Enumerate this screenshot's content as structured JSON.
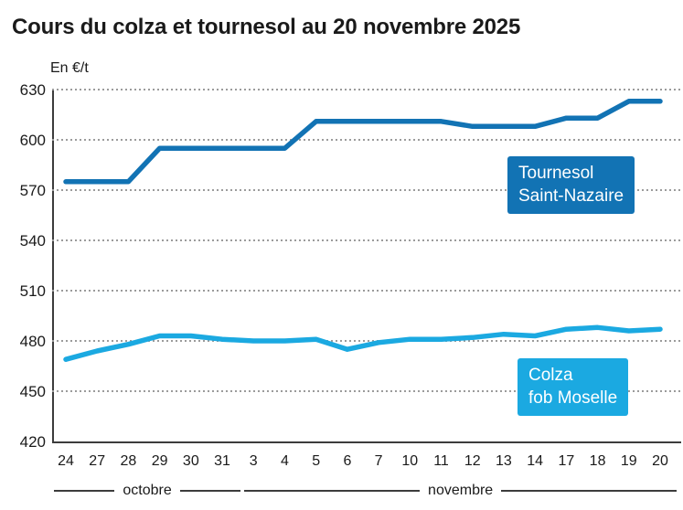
{
  "title": "Cours du colza et tournesol au 20 novembre 2025",
  "unit_label": "En €/t",
  "colors": {
    "tournesol": "#1273b4",
    "colza": "#1ba9e1",
    "grid": "#9b9b9b",
    "axis": "#3c3c3c",
    "text": "#1a1a1a"
  },
  "chart_data": {
    "type": "line",
    "title": "Cours du colza et tournesol au 20 novembre 2025",
    "ylabel": "En €/t",
    "ylim": [
      420,
      630
    ],
    "yticks": [
      630,
      600,
      570,
      540,
      510,
      480,
      450,
      420
    ],
    "grid": "horizontal dotted",
    "legend_position": "inline boxed labels on chart",
    "x": [
      "24",
      "27",
      "28",
      "29",
      "30",
      "31",
      "3",
      "4",
      "5",
      "6",
      "7",
      "10",
      "11",
      "12",
      "13",
      "14",
      "17",
      "18",
      "19",
      "20"
    ],
    "month_groups": [
      {
        "label": "octobre",
        "start_index": 0,
        "end_index": 5
      },
      {
        "label": "novembre",
        "start_index": 6,
        "end_index": 19
      }
    ],
    "series": [
      {
        "name": "Tournesol Saint-Nazaire",
        "label_lines": [
          "Tournesol",
          "Saint-Nazaire"
        ],
        "color": "#1273b4",
        "values": [
          575,
          575,
          575,
          595,
          595,
          595,
          595,
          595,
          611,
          611,
          611,
          611,
          611,
          608,
          608,
          608,
          613,
          613,
          623,
          623
        ]
      },
      {
        "name": "Colza fob Moselle",
        "label_lines": [
          "Colza",
          "fob Moselle"
        ],
        "color": "#1ba9e1",
        "values": [
          469,
          474,
          478,
          483,
          483,
          481,
          480,
          480,
          481,
          475,
          479,
          481,
          481,
          482,
          484,
          483,
          487,
          488,
          486,
          487
        ]
      }
    ]
  }
}
